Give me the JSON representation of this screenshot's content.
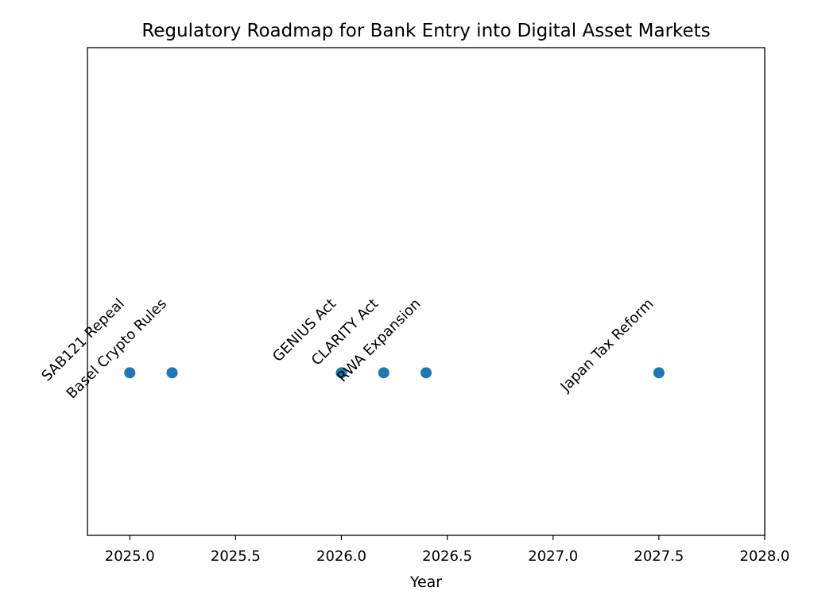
{
  "chart_data": {
    "type": "scatter",
    "title": "Regulatory Roadmap for Bank Entry into Digital Asset Markets",
    "xlabel": "Year",
    "x": [
      2025.0,
      2025.2,
      2026.0,
      2026.2,
      2026.4,
      2027.5
    ],
    "values": [
      1,
      1,
      1,
      1,
      1,
      1
    ],
    "labels": [
      "SAB121 Repeal",
      "Basel Crypto Rules",
      "GENIUS Act",
      "CLARITY Act",
      "RWA Expansion",
      "Japan Tax Reform"
    ],
    "color": "#1f77b4",
    "xlim": [
      2024.8,
      2028.0
    ],
    "ylim": [
      0,
      3
    ],
    "xticks": [
      {
        "value": 2025,
        "label": "2025.0"
      },
      2025.5,
      {
        "value": 2026,
        "label": "2026.0"
      },
      2026.5,
      {
        "value": 2027,
        "label": "2027.0"
      },
      2027.5,
      {
        "value": 2028,
        "label": "2028.0"
      }
    ]
  }
}
